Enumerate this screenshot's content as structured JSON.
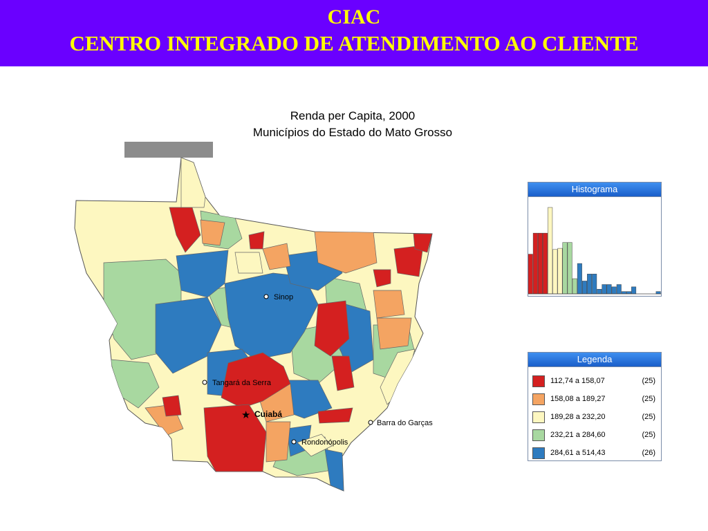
{
  "header": {
    "title": "CIAC",
    "subtitle": "CENTRO INTEGRADO DE ATENDIMENTO AO CLIENTE"
  },
  "map": {
    "title": "Renda per Capita, 2000",
    "subtitle": "Municípios do Estado do Mato Grosso",
    "cities": [
      {
        "name": "Sinop",
        "marker": "dot"
      },
      {
        "name": "Tangará da Serra",
        "marker": "dot"
      },
      {
        "name": "Cuiabá",
        "marker": "star"
      },
      {
        "name": "Barra do Garças",
        "marker": "dot"
      },
      {
        "name": "Rondonópolis",
        "marker": "dot"
      }
    ],
    "colors": {
      "class1": "#d42020",
      "class2": "#f4a462",
      "class3": "#fdf7c0",
      "class4": "#a8d8a0",
      "class5": "#2e7bbf"
    }
  },
  "histogram": {
    "title": "Histograma",
    "bar_values": [
      34,
      52,
      52,
      52,
      74,
      38,
      39,
      44,
      44,
      13,
      26,
      11,
      17,
      17,
      4,
      8,
      8,
      6,
      8,
      2,
      2,
      6,
      0,
      0,
      0,
      0,
      2
    ],
    "bar_classes": [
      1,
      1,
      1,
      1,
      3,
      3,
      3,
      4,
      4,
      4,
      5,
      5,
      5,
      5,
      5,
      5,
      5,
      5,
      5,
      5,
      5,
      5,
      5,
      5,
      5,
      5,
      5
    ]
  },
  "legend": {
    "title": "Legenda",
    "items": [
      {
        "range": "112,74 a 158,07",
        "count": "(25)",
        "color": "#d42020"
      },
      {
        "range": "158,08 a 189,27",
        "count": "(25)",
        "color": "#f4a462"
      },
      {
        "range": "189,28 a 232,20",
        "count": "(25)",
        "color": "#fdf7c0"
      },
      {
        "range": "232,21 a 284,60",
        "count": "(25)",
        "color": "#a8d8a0"
      },
      {
        "range": "284,61 a 514,43",
        "count": "(26)",
        "color": "#2e7bbf"
      }
    ]
  }
}
